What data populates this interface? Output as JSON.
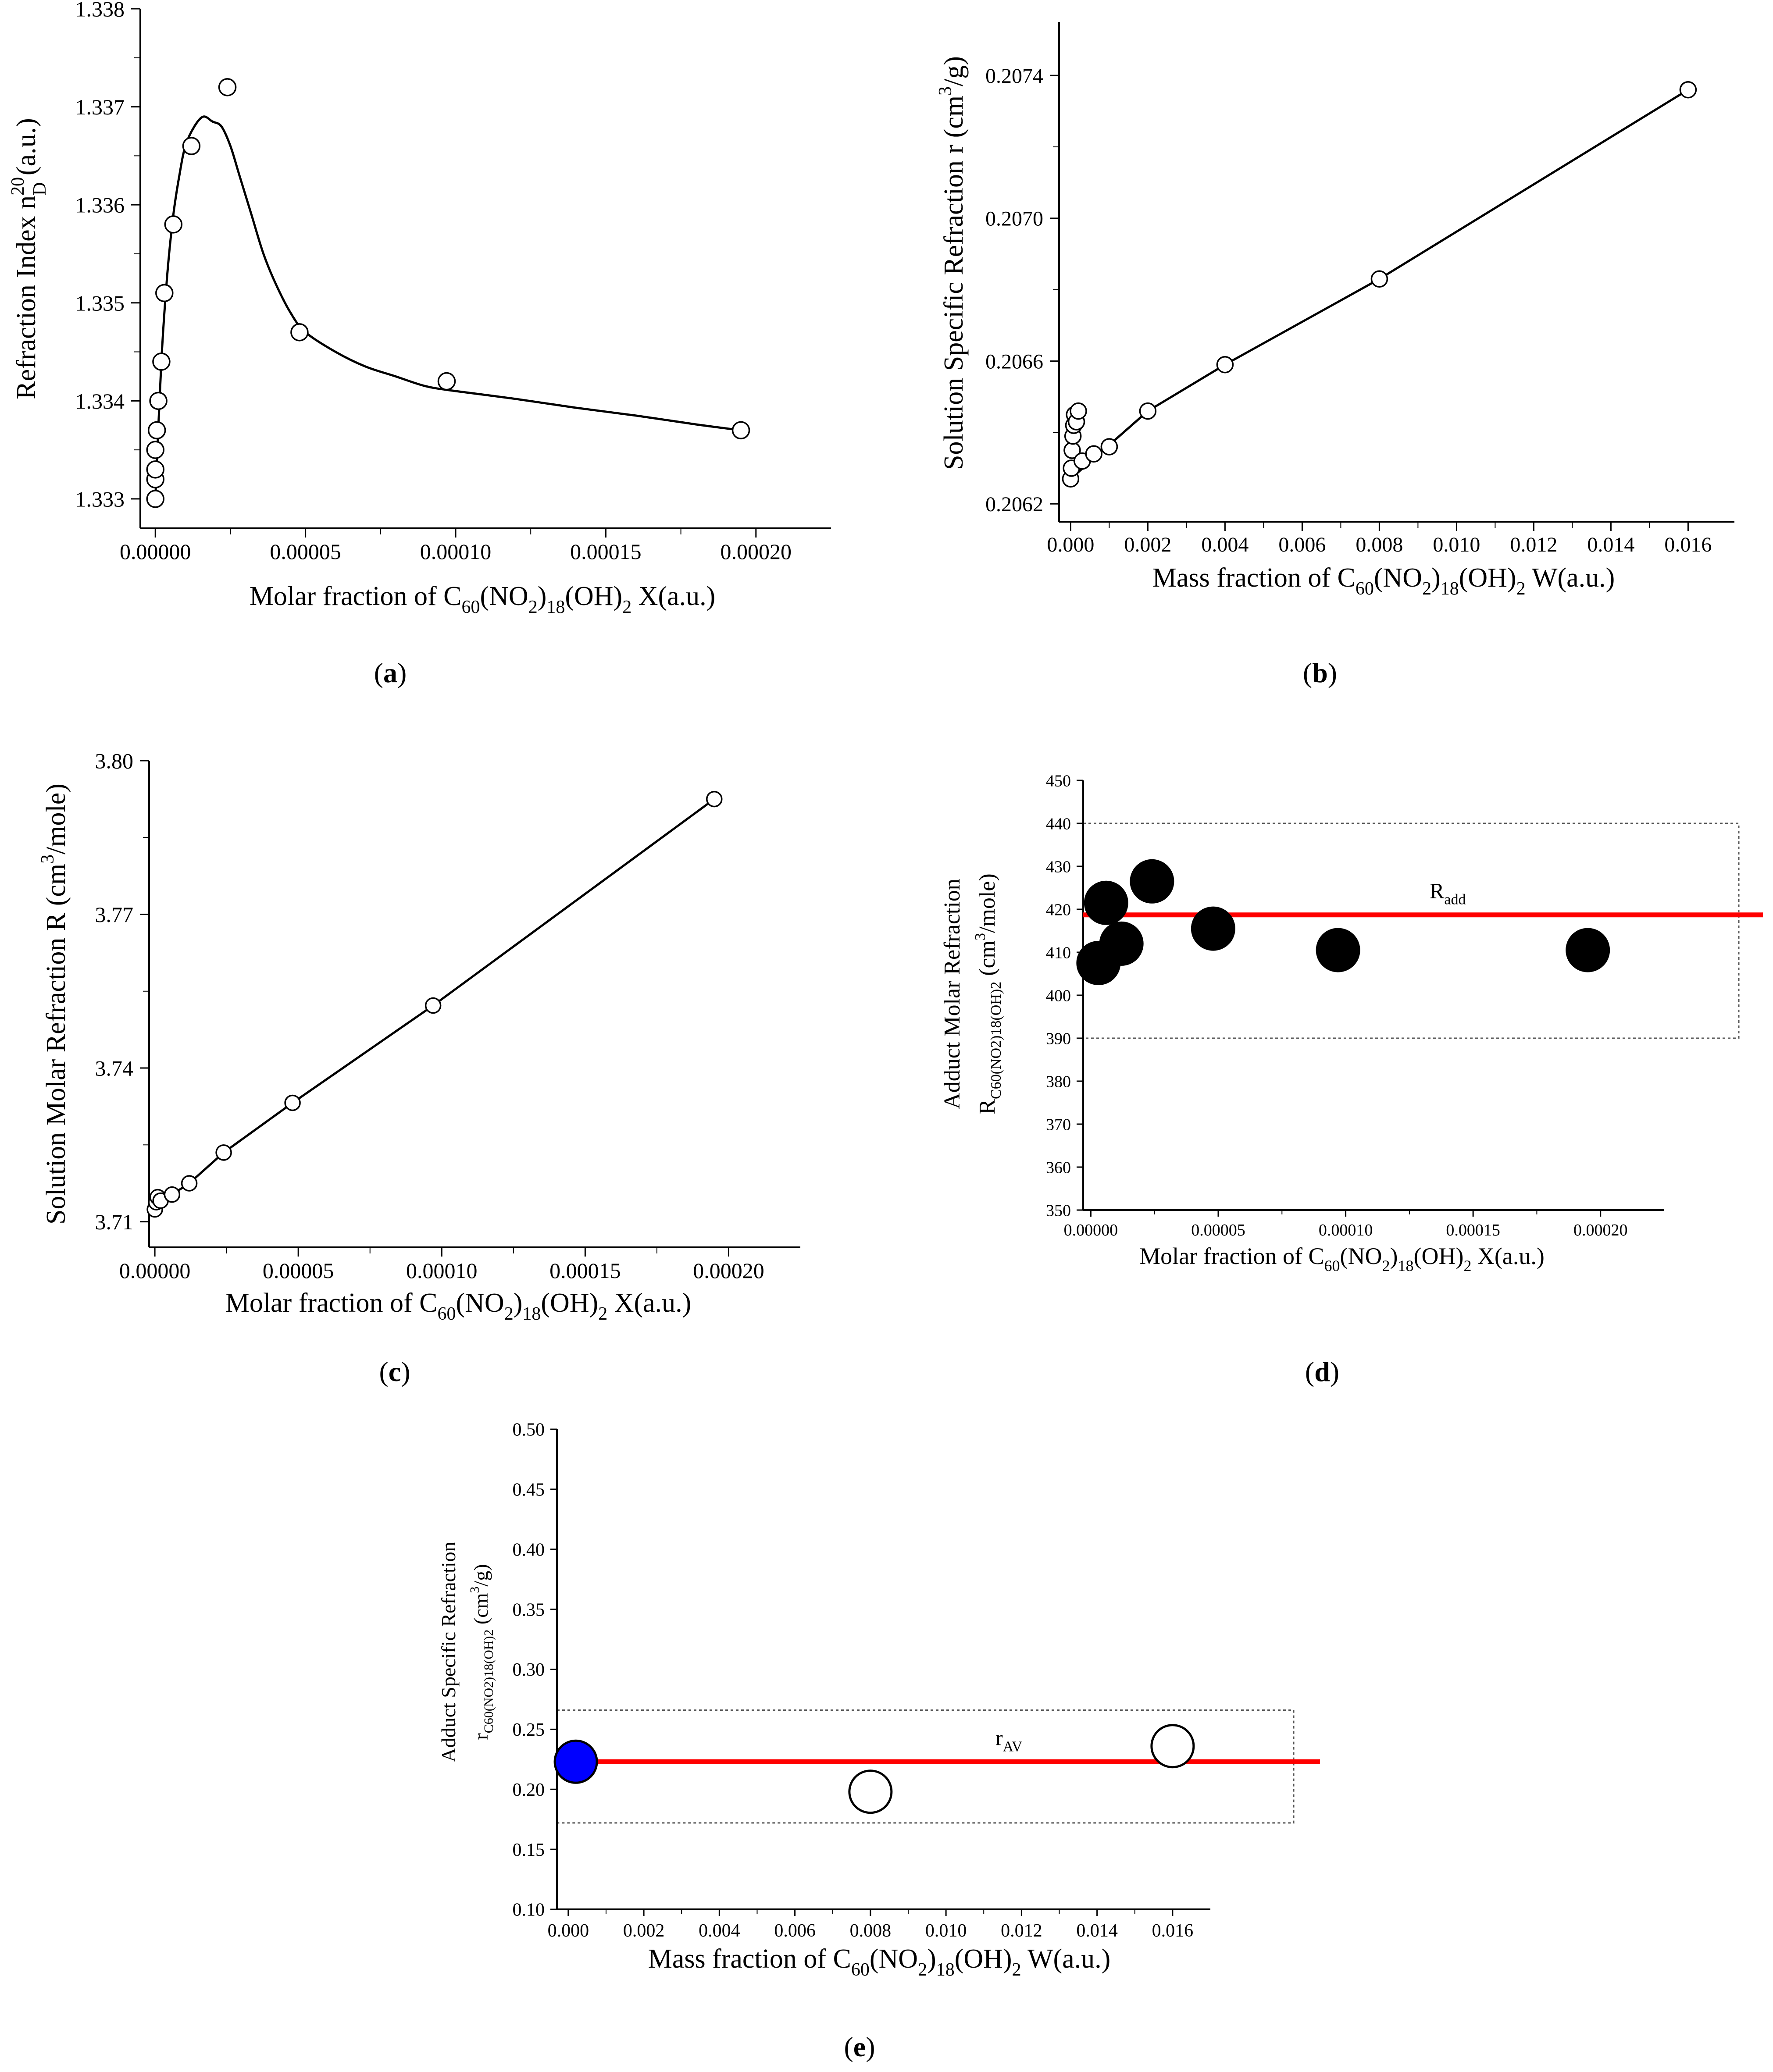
{
  "chart_data": [
    {
      "panel": "(a)",
      "type": "scatter",
      "xlabel": "Molar fraction of C60(NO2)18(OH)2 X(a.u.)",
      "ylabel": "Refraction Index nD20 (a.u.)",
      "xlim": [
        -5e-06,
        0.000225
      ],
      "ylim": [
        1.3327,
        1.338
      ],
      "x_ticks": [
        0,
        5e-05,
        0.0001,
        0.00015,
        0.0002
      ],
      "x_tick_labels": [
        "0.00000",
        "0.00005",
        "0.00010",
        "0.00015",
        "0.00020"
      ],
      "y_ticks": [
        1.333,
        1.334,
        1.335,
        1.336,
        1.337,
        1.338
      ],
      "y_tick_labels": [
        "1.333",
        "1.334",
        "1.335",
        "1.336",
        "1.337",
        "1.338"
      ],
      "series": [
        {
          "marker": "open-circle",
          "x": [
            0,
            0,
            0,
            0,
            5e-07,
            1e-06,
            2e-06,
            3e-06,
            6e-06,
            1.2e-05,
            2.4e-05,
            4.8e-05,
            9.7e-05,
            0.000195
          ],
          "y": [
            1.333,
            1.3332,
            1.3333,
            1.3335,
            1.3337,
            1.334,
            1.3344,
            1.3351,
            1.3358,
            1.3366,
            1.3372,
            1.3347,
            1.3342,
            1.3337
          ]
        }
      ],
      "fit_curve": {
        "kind": "smooth",
        "x": [
          0,
          2e-06,
          4e-06,
          6e-06,
          8e-06,
          1e-05,
          1.3e-05,
          1.6e-05,
          1.9e-05,
          2.2e-05,
          2.5e-05,
          2.8e-05,
          3.2e-05,
          3.6e-05,
          4e-05,
          4.5e-05,
          5e-05,
          6e-05,
          7e-05,
          8e-05,
          9e-05,
          0.0001,
          0.00012,
          0.00014,
          0.00016,
          0.00018,
          0.000195
        ],
        "y": [
          1.333,
          1.3344,
          1.3353,
          1.3359,
          1.3363,
          1.3366,
          1.3368,
          1.3369,
          1.33685,
          1.3368,
          1.3366,
          1.3363,
          1.3359,
          1.3355,
          1.3352,
          1.3349,
          1.3347,
          1.3345,
          1.33435,
          1.33425,
          1.33415,
          1.3341,
          1.33402,
          1.33393,
          1.33385,
          1.33376,
          1.3337
        ]
      }
    },
    {
      "panel": "(b)",
      "type": "scatter",
      "xlabel": "Mass fraction of C60(NO2)18(OH)2 W(a.u.)",
      "ylabel": "Solution Specific Refraction r (cm3/g)",
      "xlim": [
        -0.0003,
        0.0172
      ],
      "ylim": [
        0.20615,
        0.20755
      ],
      "x_ticks": [
        0,
        0.002,
        0.004,
        0.006,
        0.008,
        0.01,
        0.012,
        0.014,
        0.016
      ],
      "x_tick_labels": [
        "0.000",
        "0.002",
        "0.004",
        "0.006",
        "0.008",
        "0.010",
        "0.012",
        "0.014",
        "0.016"
      ],
      "y_ticks": [
        0.2062,
        0.2066,
        0.207,
        0.2074
      ],
      "y_tick_labels": [
        "0.2062",
        "0.2066",
        "0.2070",
        "0.2074"
      ],
      "series": [
        {
          "marker": "open-circle",
          "x": [
            0,
            2e-05,
            4e-05,
            6e-05,
            8e-05,
            0.0001,
            0.00015,
            0.0002,
            0.0003,
            0.0006,
            0.001,
            0.002,
            0.004,
            0.008,
            0.016
          ],
          "y": [
            0.20627,
            0.2063,
            0.20635,
            0.20639,
            0.20642,
            0.20645,
            0.20643,
            0.20646,
            0.20632,
            0.20634,
            0.20636,
            0.20646,
            0.20659,
            0.20683,
            0.20736
          ]
        }
      ],
      "fit_curve": {
        "kind": "linear",
        "x": [
          0,
          0.002,
          0.004,
          0.008,
          0.016
        ],
        "y": [
          0.20627,
          0.20646,
          0.20659,
          0.20683,
          0.20736
        ]
      }
    },
    {
      "panel": "(c)",
      "type": "scatter",
      "xlabel": "Molar fraction of C60(NO2)18(OH)2 X(a.u.)",
      "ylabel": "Solution Molar Refraction R (cm3/mole)",
      "xlim": [
        -2e-06,
        0.000225
      ],
      "ylim": [
        3.705,
        3.8
      ],
      "x_ticks": [
        0,
        5e-05,
        0.0001,
        0.00015,
        0.0002
      ],
      "x_tick_labels": [
        "0.00000",
        "0.00005",
        "0.00010",
        "0.00015",
        "0.00020"
      ],
      "y_ticks": [
        3.71,
        3.74,
        3.77,
        3.8
      ],
      "y_tick_labels": [
        "3.71",
        "3.74",
        "3.77",
        "3.80"
      ],
      "series": [
        {
          "marker": "open-circle",
          "x": [
            0,
            5e-07,
            1e-06,
            2e-06,
            6e-06,
            1.2e-05,
            2.4e-05,
            4.8e-05,
            9.7e-05,
            0.000195
          ],
          "y": [
            3.7124,
            3.7138,
            3.7148,
            3.7141,
            3.7153,
            3.7175,
            3.7235,
            3.7332,
            3.7522,
            3.7925
          ]
        }
      ],
      "fit_curve": {
        "kind": "linear",
        "x": [
          0,
          6e-06,
          1.2e-05,
          2.4e-05,
          4.8e-05,
          9.7e-05,
          0.000195
        ],
        "y": [
          3.7124,
          3.7153,
          3.7175,
          3.7235,
          3.7332,
          3.7522,
          3.7925
        ]
      }
    },
    {
      "panel": "(d)",
      "type": "scatter",
      "xlabel": "Molar fraction of C60(NO2)18(OH)2 X(a.u.)",
      "ylabel": "Adduct Molar Refraction RC60(NO2)18(OH)2 (cm3/mole)",
      "xlim": [
        -3e-06,
        0.000225
      ],
      "ylim": [
        350,
        450
      ],
      "x_ticks": [
        0,
        5e-05,
        0.0001,
        0.00015,
        0.0002
      ],
      "x_tick_labels": [
        "0.00000",
        "0.00005",
        "0.00010",
        "0.00015",
        "0.00020"
      ],
      "y_ticks": [
        350,
        360,
        370,
        380,
        390,
        400,
        410,
        420,
        430,
        440,
        450
      ],
      "y_tick_labels": [
        "350",
        "360",
        "370",
        "380",
        "390",
        "400",
        "410",
        "420",
        "430",
        "440",
        "450"
      ],
      "series": [
        {
          "marker": "filled-circle",
          "x": [
            3e-06,
            6e-06,
            1.2e-05,
            2.4e-05,
            4.8e-05,
            9.7e-05,
            0.000195
          ],
          "y": [
            407.5,
            421.5,
            412,
            426.5,
            415.5,
            410.5,
            410.5
          ]
        }
      ],
      "average_line": {
        "label": "R",
        "label_sub": "add",
        "y": 418.7,
        "color": "#ff0000"
      },
      "band": {
        "y": [
          390,
          440
        ]
      }
    },
    {
      "panel": "(e)",
      "type": "scatter",
      "xlabel": "Mass fraction of C60(NO2)18(OH)2 W(a.u.)",
      "ylabel": "Adduct Specific Refraction rC60(NO2)18(OH)2 (cm3/g)",
      "xlim": [
        -0.0003,
        0.017
      ],
      "ylim": [
        0.1,
        0.5
      ],
      "x_ticks": [
        0,
        0.002,
        0.004,
        0.006,
        0.008,
        0.01,
        0.012,
        0.014,
        0.016
      ],
      "x_tick_labels": [
        "0.000",
        "0.002",
        "0.004",
        "0.006",
        "0.008",
        "0.010",
        "0.012",
        "0.014",
        "0.016"
      ],
      "y_ticks": [
        0.1,
        0.15,
        0.2,
        0.25,
        0.3,
        0.35,
        0.4,
        0.45,
        0.5
      ],
      "y_tick_labels": [
        "0.10",
        "0.15",
        "0.20",
        "0.25",
        "0.30",
        "0.35",
        "0.40",
        "0.45",
        "0.50"
      ],
      "series": [
        {
          "marker": "mixed",
          "x": [
            0.0002,
            0.008,
            0.016
          ],
          "y": [
            0.223,
            0.198,
            0.236
          ],
          "fills": [
            "#0000ff",
            "#ffffff",
            "#ffffff"
          ]
        }
      ],
      "average_line": {
        "label": "r",
        "label_sub": "AV",
        "y": 0.223,
        "color": "#ff0000"
      },
      "band": {
        "y": [
          0.172,
          0.266
        ]
      }
    }
  ],
  "labels": {
    "a": {
      "ylabel": {
        "main": "Refraction Index n",
        "sup": "20",
        "sub": "D",
        "end": " (a.u.)"
      },
      "xlabel": {
        "p1": "Molar fraction of C",
        "s1": "60",
        "p2": "(NO",
        "s2": "2",
        "p3": ")",
        "s3": "18",
        "p4": "(OH)",
        "s4": "2",
        "p5": " X(a.u.)"
      },
      "caption": "a"
    },
    "b": {
      "ylabel": {
        "main": "Solution Specific Refraction r (cm",
        "sup": "3",
        "end": "/g)"
      },
      "xlabel": {
        "p1": "Mass fraction of C",
        "s1": "60",
        "p2": "(NO",
        "s2": "2",
        "p3": ")",
        "s3": "18",
        "p4": "(OH)",
        "s4": "2",
        "p5": " W(a.u.)"
      },
      "caption": "b"
    },
    "c": {
      "ylabel": {
        "main": "Solution Molar Refraction R (cm",
        "sup": "3",
        "end": "/mole)"
      },
      "xlabel": {
        "p1": "Molar fraction of C",
        "s1": "60",
        "p2": "(NO",
        "s2": "2",
        "p3": ")",
        "s3": "18",
        "p4": "(OH)",
        "s4": "2",
        "p5": " X(a.u.)"
      },
      "caption": "c"
    },
    "d": {
      "ylabel1": "Adduct  Molar Refraction",
      "ylabel2": {
        "main": "R",
        "sub": "C60(NO2)18(OH)2",
        "mid": " (cm",
        "sup": "3",
        "end": "/mole)"
      },
      "xlabel": {
        "p1": "Molar fraction of C",
        "s1": "60",
        "p2": "(NO",
        "s2": "2",
        "p3": ")",
        "s3": "18",
        "p4": "(OH)",
        "s4": "2",
        "p5": " X(a.u.)"
      },
      "caption": "d"
    },
    "e": {
      "ylabel1": "Adduct Specific Refraction",
      "ylabel2": {
        "main": "r",
        "sub": "C60(NO2)18(OH)2",
        "mid": " (cm",
        "sup": "3",
        "end": "/g)"
      },
      "xlabel": {
        "p1": "Mass fraction of C",
        "s1": "60",
        "p2": "(NO",
        "s2": "2",
        "p3": ")",
        "s3": "18",
        "p4": "(OH)",
        "s4": "2",
        "p5": " W(a.u.)"
      },
      "caption": "e"
    }
  },
  "colors": {
    "axis": "#000000",
    "fit_line": "#000000",
    "average_line": "#ff0000",
    "band_border": "#555555",
    "filled_marker": "#000000",
    "highlight_marker": "#0000ff"
  }
}
